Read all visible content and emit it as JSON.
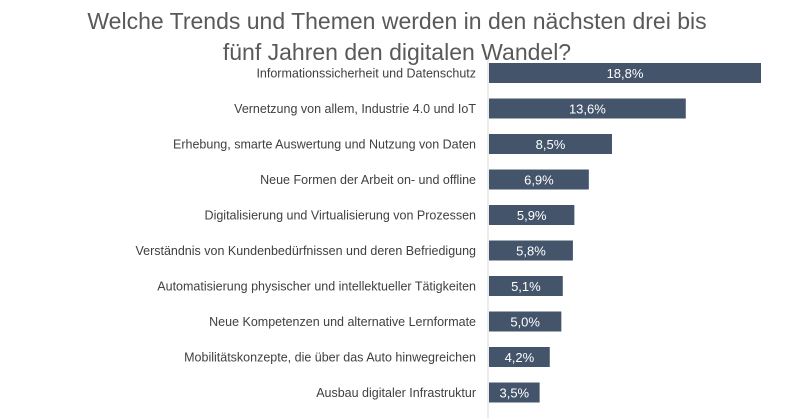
{
  "chart_data": {
    "type": "bar",
    "orientation": "horizontal",
    "title_lines": [
      "Welche Trends und Themen werden in den nächsten drei bis",
      "fünf Jahren den digitalen Wandel?"
    ],
    "categories": [
      "Informationssicherheit und Datenschutz",
      "Vernetzung von allem, Industrie 4.0 und IoT",
      "Erhebung, smarte Auswertung und Nutzung von Daten",
      "Neue Formen der Arbeit on- und offline",
      "Digitalisierung und Virtualisierung von Prozessen",
      "Verständnis von Kundenbedürfnissen und deren Befriedigung",
      "Automatisierung physischer und intellektueller Tätigkeiten",
      "Neue Kompetenzen und alternative Lernformate",
      "Mobilitätskonzepte, die über das Auto hinwegreichen",
      "Ausbau digitaler Infrastruktur"
    ],
    "values": [
      18.8,
      13.6,
      8.5,
      6.9,
      5.9,
      5.8,
      5.1,
      5.0,
      4.2,
      3.5
    ],
    "value_labels": [
      "18,8%",
      "13,6%",
      "8,5%",
      "6,9%",
      "5,9%",
      "5,8%",
      "5,1%",
      "5,0%",
      "4,2%",
      "3,5%"
    ],
    "xlim": [
      0,
      18.8
    ],
    "grid": false,
    "legend": "none",
    "bar_color": "#44546a",
    "label_color": "#404040",
    "value_label_color": "#ffffff",
    "title_color": "#595959"
  }
}
